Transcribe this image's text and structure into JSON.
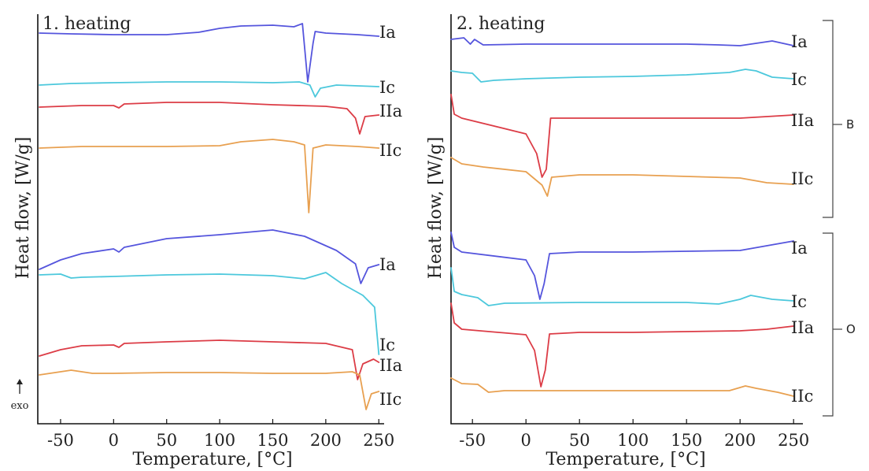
{
  "colors": {
    "Ia": "#5555dd",
    "Ic": "#4cc8dc",
    "IIa": "#dc3c46",
    "IIc": "#e8a050"
  },
  "exo_label": "exo",
  "group_labels": [
    "B",
    "O"
  ],
  "chart_data": [
    {
      "type": "line",
      "title": "1. heating",
      "xlabel": "Temperature, [°C]",
      "ylabel": "Heat flow, [W/g]",
      "xlim": [
        -70,
        255
      ],
      "x_ticks": [
        "-50",
        "0",
        "50",
        "100",
        "150",
        "200",
        "250"
      ],
      "y_ticks": "none",
      "grid": false,
      "series": [
        {
          "name": "Ia",
          "group": "B",
          "points": [
            [
              -70,
              42
            ],
            [
              -40,
              43
            ],
            [
              0,
              44
            ],
            [
              50,
              44
            ],
            [
              80,
              41
            ],
            [
              100,
              36
            ],
            [
              120,
              33
            ],
            [
              150,
              32
            ],
            [
              170,
              34
            ],
            [
              178,
              30
            ],
            [
              183,
              104
            ],
            [
              188,
              55
            ],
            [
              190,
              40
            ],
            [
              200,
              42
            ],
            [
              230,
              44
            ],
            [
              250,
              46
            ]
          ]
        },
        {
          "name": "Ic",
          "group": "B",
          "points": [
            [
              -70,
              108
            ],
            [
              -40,
              106
            ],
            [
              0,
              105
            ],
            [
              50,
              104
            ],
            [
              100,
              104
            ],
            [
              150,
              105
            ],
            [
              175,
              104
            ],
            [
              185,
              108
            ],
            [
              190,
              123
            ],
            [
              195,
              112
            ],
            [
              210,
              108
            ],
            [
              250,
              110
            ]
          ]
        },
        {
          "name": "IIa",
          "group": "B",
          "points": [
            [
              -70,
              136
            ],
            [
              -30,
              134
            ],
            [
              0,
              134
            ],
            [
              5,
              137
            ],
            [
              10,
              132
            ],
            [
              50,
              130
            ],
            [
              100,
              130
            ],
            [
              150,
              133
            ],
            [
              200,
              135
            ],
            [
              220,
              138
            ],
            [
              228,
              150
            ],
            [
              232,
              170
            ],
            [
              237,
              148
            ],
            [
              250,
              146
            ]
          ]
        },
        {
          "name": "IIc",
          "group": "B",
          "points": [
            [
              -70,
              188
            ],
            [
              -30,
              186
            ],
            [
              0,
              186
            ],
            [
              50,
              186
            ],
            [
              100,
              185
            ],
            [
              120,
              180
            ],
            [
              150,
              177
            ],
            [
              170,
              180
            ],
            [
              180,
              184
            ],
            [
              184,
              270
            ],
            [
              188,
              188
            ],
            [
              200,
              184
            ],
            [
              230,
              186
            ],
            [
              250,
              188
            ]
          ]
        },
        {
          "name": "Ia",
          "group": "O",
          "points": [
            [
              -70,
              342
            ],
            [
              -50,
              330
            ],
            [
              -30,
              322
            ],
            [
              0,
              316
            ],
            [
              5,
              320
            ],
            [
              10,
              314
            ],
            [
              50,
              303
            ],
            [
              100,
              298
            ],
            [
              150,
              292
            ],
            [
              180,
              300
            ],
            [
              210,
              318
            ],
            [
              228,
              335
            ],
            [
              233,
              360
            ],
            [
              240,
              340
            ],
            [
              250,
              336
            ]
          ]
        },
        {
          "name": "Ic",
          "group": "O",
          "points": [
            [
              -70,
              349
            ],
            [
              -50,
              348
            ],
            [
              -40,
              353
            ],
            [
              -30,
              352
            ],
            [
              0,
              351
            ],
            [
              50,
              349
            ],
            [
              100,
              348
            ],
            [
              150,
              350
            ],
            [
              180,
              354
            ],
            [
              200,
              346
            ],
            [
              215,
              360
            ],
            [
              235,
              375
            ],
            [
              246,
              390
            ],
            [
              250,
              450
            ]
          ]
        },
        {
          "name": "IIa",
          "group": "O",
          "points": [
            [
              -70,
              452
            ],
            [
              -50,
              444
            ],
            [
              -30,
              439
            ],
            [
              0,
              438
            ],
            [
              5,
              441
            ],
            [
              10,
              436
            ],
            [
              50,
              434
            ],
            [
              100,
              432
            ],
            [
              150,
              434
            ],
            [
              200,
              436
            ],
            [
              225,
              444
            ],
            [
              230,
              482
            ],
            [
              235,
              462
            ],
            [
              245,
              456
            ],
            [
              250,
              460
            ]
          ]
        },
        {
          "name": "IIc",
          "group": "O",
          "points": [
            [
              -70,
              476
            ],
            [
              -40,
              470
            ],
            [
              -20,
              474
            ],
            [
              0,
              474
            ],
            [
              50,
              473
            ],
            [
              100,
              473
            ],
            [
              150,
              474
            ],
            [
              200,
              474
            ],
            [
              225,
              472
            ],
            [
              232,
              476
            ],
            [
              238,
              520
            ],
            [
              243,
              500
            ],
            [
              250,
              497
            ]
          ]
        }
      ],
      "curve_labels": [
        {
          "text": "Ia"
        },
        {
          "text": "Ic"
        },
        {
          "text": "IIa"
        },
        {
          "text": "IIc"
        },
        {
          "text": "Ia"
        },
        {
          "text": "Ic"
        },
        {
          "text": "IIa"
        },
        {
          "text": "IIc"
        }
      ]
    },
    {
      "type": "line",
      "title": "2. heating",
      "xlabel": "Temperature, [°C]",
      "ylabel": "Heat flow, [W/g]",
      "xlim": [
        -70,
        255
      ],
      "x_ticks": [
        "-50",
        "0",
        "50",
        "100",
        "150",
        "200",
        "250"
      ],
      "y_ticks": "none",
      "grid": false,
      "series": [
        {
          "name": "Ia",
          "group": "B",
          "points": [
            [
              -70,
              50
            ],
            [
              -58,
              48
            ],
            [
              -52,
              56
            ],
            [
              -48,
              50
            ],
            [
              -40,
              57
            ],
            [
              0,
              56
            ],
            [
              50,
              56
            ],
            [
              100,
              56
            ],
            [
              150,
              56
            ],
            [
              180,
              57
            ],
            [
              200,
              58
            ],
            [
              230,
              52
            ],
            [
              250,
              58
            ]
          ]
        },
        {
          "name": "Ic",
          "group": "B",
          "points": [
            [
              -70,
              90
            ],
            [
              -60,
              92
            ],
            [
              -50,
              93
            ],
            [
              -42,
              104
            ],
            [
              -30,
              102
            ],
            [
              0,
              100
            ],
            [
              50,
              98
            ],
            [
              100,
              97
            ],
            [
              150,
              95
            ],
            [
              190,
              92
            ],
            [
              205,
              88
            ],
            [
              215,
              90
            ],
            [
              230,
              98
            ],
            [
              250,
              100
            ]
          ]
        },
        {
          "name": "IIa",
          "group": "B",
          "points": [
            [
              -70,
              120
            ],
            [
              -67,
              145
            ],
            [
              -60,
              150
            ],
            [
              0,
              170
            ],
            [
              10,
              195
            ],
            [
              15,
              225
            ],
            [
              19,
              215
            ],
            [
              23,
              150
            ],
            [
              50,
              150
            ],
            [
              100,
              150
            ],
            [
              150,
              150
            ],
            [
              200,
              150
            ],
            [
              250,
              146
            ]
          ]
        },
        {
          "name": "IIc",
          "group": "B",
          "points": [
            [
              -70,
              200
            ],
            [
              -60,
              208
            ],
            [
              -40,
              212
            ],
            [
              0,
              218
            ],
            [
              15,
              235
            ],
            [
              20,
              249
            ],
            [
              24,
              225
            ],
            [
              50,
              222
            ],
            [
              100,
              222
            ],
            [
              150,
              224
            ],
            [
              200,
              226
            ],
            [
              225,
              232
            ],
            [
              250,
              234
            ]
          ]
        },
        {
          "name": "Ia",
          "group": "O",
          "points": [
            [
              -70,
              295
            ],
            [
              -67,
              314
            ],
            [
              -60,
              320
            ],
            [
              0,
              330
            ],
            [
              8,
              350
            ],
            [
              13,
              380
            ],
            [
              17,
              360
            ],
            [
              22,
              322
            ],
            [
              50,
              320
            ],
            [
              100,
              320
            ],
            [
              150,
              319
            ],
            [
              200,
              318
            ],
            [
              225,
              312
            ],
            [
              250,
              306
            ]
          ]
        },
        {
          "name": "Ic",
          "group": "O",
          "points": [
            [
              -70,
              340
            ],
            [
              -67,
              370
            ],
            [
              -60,
              374
            ],
            [
              -45,
              378
            ],
            [
              -35,
              388
            ],
            [
              -20,
              385
            ],
            [
              50,
              384
            ],
            [
              100,
              384
            ],
            [
              150,
              384
            ],
            [
              180,
              386
            ],
            [
              200,
              380
            ],
            [
              210,
              375
            ],
            [
              230,
              380
            ],
            [
              250,
              382
            ]
          ]
        },
        {
          "name": "IIa",
          "group": "O",
          "points": [
            [
              -70,
              385
            ],
            [
              -67,
              410
            ],
            [
              -60,
              418
            ],
            [
              0,
              425
            ],
            [
              8,
              445
            ],
            [
              14,
              491
            ],
            [
              18,
              470
            ],
            [
              22,
              424
            ],
            [
              50,
              422
            ],
            [
              100,
              422
            ],
            [
              150,
              421
            ],
            [
              200,
              420
            ],
            [
              225,
              418
            ],
            [
              250,
              414
            ]
          ]
        },
        {
          "name": "IIc",
          "group": "O",
          "points": [
            [
              -70,
              480
            ],
            [
              -60,
              487
            ],
            [
              -45,
              488
            ],
            [
              -35,
              498
            ],
            [
              -20,
              496
            ],
            [
              50,
              496
            ],
            [
              100,
              496
            ],
            [
              150,
              496
            ],
            [
              190,
              496
            ],
            [
              205,
              490
            ],
            [
              215,
              493
            ],
            [
              235,
              498
            ],
            [
              250,
              503
            ]
          ]
        }
      ],
      "curve_labels": [
        {
          "text": "Ia"
        },
        {
          "text": "Ic"
        },
        {
          "text": "IIa"
        },
        {
          "text": "IIc"
        },
        {
          "text": "Ia"
        },
        {
          "text": "Ic"
        },
        {
          "text": "IIa"
        },
        {
          "text": "IIc"
        }
      ]
    }
  ]
}
